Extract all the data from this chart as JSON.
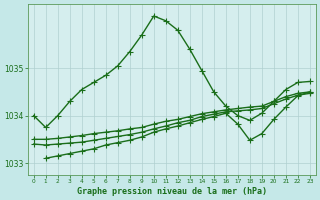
{
  "bg_color": "#c5e8e8",
  "plot_bg_color": "#d5eeee",
  "grid_color": "#b0d0d0",
  "line_color": "#1a6e1a",
  "xlim": [
    -0.5,
    23.5
  ],
  "ylim": [
    1032.75,
    1036.35
  ],
  "xticks": [
    0,
    1,
    2,
    3,
    4,
    5,
    6,
    7,
    8,
    9,
    10,
    11,
    12,
    13,
    14,
    15,
    16,
    17,
    18,
    19,
    20,
    21,
    22,
    23
  ],
  "yticks": [
    1033,
    1034,
    1035
  ],
  "xlabel": "Graphe pression niveau de la mer (hPa)",
  "series": [
    {
      "x": [
        0,
        1,
        2,
        3,
        4,
        5,
        6,
        7,
        8,
        9,
        10,
        11,
        12,
        13,
        14,
        15,
        16,
        17,
        18,
        19,
        20,
        21,
        22,
        23
      ],
      "y": [
        1034.0,
        1033.75,
        1034.0,
        1034.3,
        1034.55,
        1034.7,
        1034.85,
        1035.05,
        1035.35,
        1035.7,
        1036.1,
        1036.0,
        1035.8,
        1035.4,
        1034.95,
        1034.5,
        1034.2,
        1034.0,
        1033.9,
        1034.05,
        1034.3,
        1034.55,
        1034.7,
        1034.72
      ],
      "marker": "+",
      "markersize": 4,
      "linewidth": 1.0
    },
    {
      "x": [
        0,
        1,
        2,
        3,
        4,
        5,
        6,
        7,
        8,
        9,
        10,
        11,
        12,
        13,
        14,
        15,
        16,
        17,
        18,
        19,
        20,
        21,
        22,
        23
      ],
      "y": [
        1033.5,
        1033.5,
        1033.52,
        1033.55,
        1033.58,
        1033.62,
        1033.65,
        1033.68,
        1033.72,
        1033.75,
        1033.82,
        1033.88,
        1033.92,
        1033.98,
        1034.04,
        1034.08,
        1034.12,
        1034.15,
        1034.18,
        1034.2,
        1034.3,
        1034.4,
        1034.47,
        1034.5
      ],
      "marker": "+",
      "markersize": 4,
      "linewidth": 1.0
    },
    {
      "x": [
        0,
        1,
        2,
        3,
        4,
        5,
        6,
        7,
        8,
        9,
        10,
        11,
        12,
        13,
        14,
        15,
        16,
        17,
        18,
        19,
        20,
        21,
        22,
        23
      ],
      "y": [
        1033.4,
        1033.38,
        1033.4,
        1033.42,
        1033.44,
        1033.48,
        1033.52,
        1033.56,
        1033.6,
        1033.65,
        1033.72,
        1033.78,
        1033.85,
        1033.9,
        1033.98,
        1034.03,
        1034.08,
        1034.1,
        1034.12,
        1034.15,
        1034.25,
        1034.35,
        1034.43,
        1034.47
      ],
      "marker": "+",
      "markersize": 4,
      "linewidth": 1.0
    },
    {
      "x": [
        1,
        2,
        3,
        4,
        5,
        6,
        7,
        8,
        9,
        10,
        11,
        12,
        13,
        14,
        15,
        16,
        17,
        18,
        19,
        20,
        21,
        22,
        23
      ],
      "y": [
        1033.1,
        1033.15,
        1033.2,
        1033.25,
        1033.3,
        1033.38,
        1033.43,
        1033.48,
        1033.55,
        1033.65,
        1033.72,
        1033.78,
        1033.85,
        1033.92,
        1033.98,
        1034.05,
        1033.82,
        1033.48,
        1033.62,
        1033.92,
        1034.18,
        1034.42,
        1034.5
      ],
      "marker": "+",
      "markersize": 4,
      "linewidth": 1.0
    }
  ]
}
